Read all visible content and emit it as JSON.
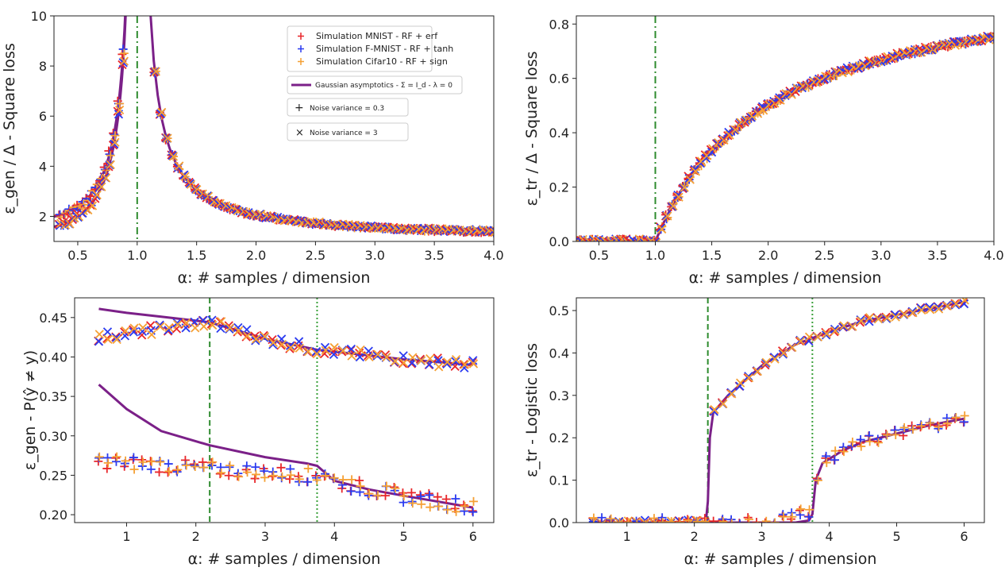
{
  "colors": {
    "mnist": "#e8262a",
    "fmnist": "#2b3bf0",
    "cifar": "#f5a034",
    "theory": "#7b2088",
    "vline_dash": "#2e8b2e",
    "vline_dot": "#3aa03a"
  },
  "legend": {
    "mnist": "Simulation MNIST - RF + erf",
    "fmnist": "Simulation F-MNIST - RF + tanh",
    "cifar": "Simulation Cifar10 - RF + sign",
    "theory": "Gaussian asymptotics - Σ = I_d - λ = 0",
    "noise_low": "Noise variance = 0.3",
    "noise_high": "Noise variance = 3"
  },
  "chart_data": [
    {
      "id": "top_left",
      "type": "scatter",
      "xlabel": "α: # samples / dimension",
      "ylabel": "ε_gen / Δ - Square loss",
      "xlim": [
        0.3,
        4.0
      ],
      "ylim": [
        1.0,
        10.0
      ],
      "xticks": [
        "0.5",
        "1.0",
        "1.5",
        "2.0",
        "2.5",
        "3.0",
        "3.5",
        "4.0"
      ],
      "yticks": [
        "2",
        "4",
        "6",
        "8",
        "10"
      ],
      "vlines": [
        {
          "x": 1.0,
          "style": "dashdot"
        }
      ],
      "series": [
        {
          "name": "Gaussian asymptotics - noise 0.3",
          "kind": "theory",
          "formula": "1 + 1/|1-a| (a<1: 1 + a/(1-a))"
        },
        {
          "name": "Gaussian asymptotics - noise 3",
          "kind": "theory"
        },
        {
          "name": "MNIST",
          "kind": "sim"
        },
        {
          "name": "F-MNIST",
          "kind": "sim"
        },
        {
          "name": "Cifar10",
          "kind": "sim"
        }
      ]
    },
    {
      "id": "top_right",
      "type": "scatter",
      "xlabel": "α: # samples / dimension",
      "ylabel": "ε_tr / Δ - Square loss",
      "xlim": [
        0.3,
        4.0
      ],
      "ylim": [
        0.0,
        0.83
      ],
      "xticks": [
        "0.5",
        "1.0",
        "1.5",
        "2.0",
        "2.5",
        "3.0",
        "3.5",
        "4.0"
      ],
      "yticks": [
        "0.0",
        "0.2",
        "0.4",
        "0.6",
        "0.8"
      ],
      "vlines": [
        {
          "x": 1.0,
          "style": "dashdot"
        }
      ],
      "series": [
        {
          "name": "Gaussian asymptotics",
          "kind": "theory",
          "formula": "1 - 1/a for a>1, 0 otherwise"
        }
      ]
    },
    {
      "id": "bottom_left",
      "type": "scatter",
      "xlabel": "α: # samples / dimension",
      "ylabel": "ε_gen - P(ŷ ≠ y)",
      "xlim": [
        0.25,
        6.3
      ],
      "ylim": [
        0.19,
        0.475
      ],
      "xticks": [
        "1",
        "2",
        "3",
        "4",
        "5",
        "6"
      ],
      "yticks": [
        "0.20",
        "0.25",
        "0.30",
        "0.35",
        "0.40",
        "0.45"
      ],
      "vlines": [
        {
          "x": 2.2,
          "style": "dashed"
        },
        {
          "x": 3.75,
          "style": "dotted"
        }
      ],
      "series": [
        {
          "name": "theory high noise",
          "points": [
            [
              0.6,
              0.461
            ],
            [
              1.0,
              0.456
            ],
            [
              1.5,
              0.451
            ],
            [
              2.2,
              0.444
            ],
            [
              3.0,
              0.423
            ],
            [
              3.75,
              0.409
            ],
            [
              4.5,
              0.402
            ],
            [
              5.0,
              0.397
            ],
            [
              6.0,
              0.39
            ]
          ]
        },
        {
          "name": "theory low noise",
          "points": [
            [
              0.6,
              0.365
            ],
            [
              1.0,
              0.334
            ],
            [
              1.5,
              0.306
            ],
            [
              2.2,
              0.288
            ],
            [
              3.0,
              0.273
            ],
            [
              3.6,
              0.265
            ],
            [
              3.75,
              0.262
            ],
            [
              4.0,
              0.243
            ],
            [
              4.5,
              0.232
            ],
            [
              5.0,
              0.224
            ],
            [
              6.0,
              0.209
            ]
          ]
        }
      ]
    },
    {
      "id": "bottom_right",
      "type": "scatter",
      "xlabel": "α: # samples / dimension",
      "ylabel": "ε_tr - Logistic loss",
      "xlim": [
        0.25,
        6.3
      ],
      "ylim": [
        0.0,
        0.53
      ],
      "xticks": [
        "1",
        "2",
        "3",
        "4",
        "5",
        "6"
      ],
      "yticks": [
        "0.0",
        "0.1",
        "0.2",
        "0.3",
        "0.4",
        "0.5"
      ],
      "vlines": [
        {
          "x": 2.2,
          "style": "dashed"
        },
        {
          "x": 3.75,
          "style": "dotted"
        }
      ],
      "series": [
        {
          "name": "theory high noise",
          "points": [
            [
              0.5,
              0.0
            ],
            [
              2.17,
              0.0
            ],
            [
              2.2,
              0.05
            ],
            [
              2.23,
              0.2
            ],
            [
              2.28,
              0.26
            ],
            [
              2.5,
              0.3
            ],
            [
              3.0,
              0.37
            ],
            [
              3.5,
              0.42
            ],
            [
              4.0,
              0.45
            ],
            [
              4.5,
              0.475
            ],
            [
              5.0,
              0.49
            ],
            [
              5.5,
              0.505
            ],
            [
              6.0,
              0.52
            ]
          ]
        },
        {
          "name": "theory low noise",
          "points": [
            [
              0.5,
              0.0
            ],
            [
              3.5,
              0.0
            ],
            [
              3.7,
              0.005
            ],
            [
              3.75,
              0.02
            ],
            [
              3.8,
              0.1
            ],
            [
              3.9,
              0.14
            ],
            [
              4.2,
              0.17
            ],
            [
              4.5,
              0.19
            ],
            [
              5.0,
              0.21
            ],
            [
              5.5,
              0.23
            ],
            [
              6.0,
              0.245
            ]
          ]
        }
      ]
    }
  ]
}
